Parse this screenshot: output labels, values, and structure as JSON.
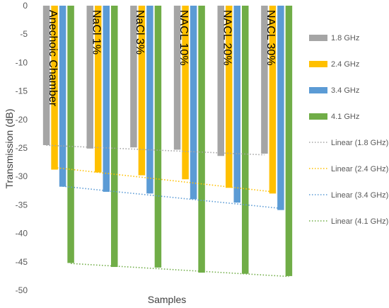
{
  "chart_data": {
    "type": "bar",
    "title": "",
    "xlabel": "Samples",
    "ylabel": "Transmission (dB)",
    "ylim": [
      -50,
      0
    ],
    "yticks": [
      0,
      -5,
      -10,
      -15,
      -20,
      -25,
      -30,
      -35,
      -40,
      -45,
      -50
    ],
    "grid": false,
    "legend_position": "right",
    "categories": [
      "Anechoic Chamber",
      "NaCl 1%",
      "NaCl 3%",
      "NACL 10%",
      "NACL 20%",
      "NACL 30%"
    ],
    "series": [
      {
        "name": "1.8 GHz",
        "color": "#a5a5a5",
        "values": [
          -24.5,
          -25.1,
          -24.9,
          -25.3,
          -26.4,
          -26.0
        ]
      },
      {
        "name": "2.4 GHz",
        "color": "#ffc000",
        "values": [
          -28.8,
          -29.3,
          -29.8,
          -30.5,
          -32.0,
          -33.0
        ]
      },
      {
        "name": "3.4 GHz",
        "color": "#5b9bd5",
        "values": [
          -31.8,
          -32.7,
          -33.0,
          -34.0,
          -34.6,
          -35.9
        ]
      },
      {
        "name": "4.1 GHz",
        "color": "#70ad47",
        "values": [
          -45.2,
          -45.9,
          -46.0,
          -46.9,
          -47.1,
          -47.5
        ]
      }
    ],
    "trendlines": [
      {
        "name": "Linear (1.8 GHz)",
        "color": "#a5a5a5",
        "style": "dotted",
        "series": "1.8 GHz"
      },
      {
        "name": "Linear (2.4 GHz)",
        "color": "#ffc000",
        "style": "dotted",
        "series": "2.4 GHz"
      },
      {
        "name": "Linear (3.4 GHz)",
        "color": "#5b9bd5",
        "style": "dotted",
        "series": "3.4 GHz"
      },
      {
        "name": "Linear (4.1 GHz)",
        "color": "#70ad47",
        "style": "dotted",
        "series": "4.1 GHz"
      }
    ]
  }
}
